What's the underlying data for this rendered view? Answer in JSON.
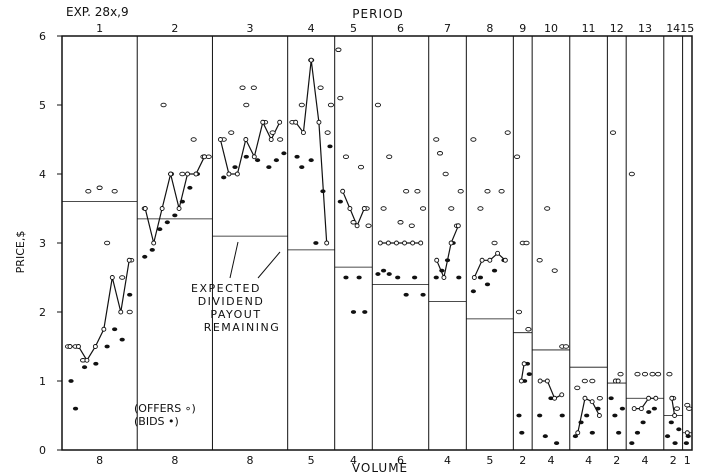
{
  "chart_data": {
    "type": "scatter",
    "experiment_label": "EXP. 28x,9",
    "title": "PERIOD",
    "xlabel": "VOLUME",
    "ylabel": "PRICE,$",
    "ylim": [
      0,
      6
    ],
    "yticks": [
      "0",
      "1",
      "2",
      "3",
      "4",
      "5",
      "6"
    ],
    "periods": [
      "1",
      "2",
      "3",
      "4",
      "5",
      "6",
      "7",
      "8",
      "9",
      "10",
      "11",
      "12",
      "13",
      "14",
      "15"
    ],
    "volumes": [
      "8",
      "8",
      "8",
      "5",
      "4",
      "6",
      "4",
      "5",
      "2",
      "4",
      "4",
      "2",
      "4",
      "2",
      "1"
    ],
    "period_weights": [
      8,
      8,
      8,
      5,
      4,
      6,
      4,
      5,
      2,
      4,
      4,
      2,
      4,
      2,
      1
    ],
    "dividend_payout_remaining": [
      3.6,
      3.35,
      3.1,
      2.9,
      2.65,
      2.4,
      2.15,
      1.9,
      1.7,
      1.45,
      1.2,
      0.97,
      0.75,
      0.5,
      0.25
    ],
    "annotation": [
      "EXPECTED",
      "DIVIDEND",
      "PAYOUT",
      "REMAINING"
    ],
    "legend": [
      "(OFFERS ∘)",
      "(BIDS •)"
    ],
    "transactions": [
      [
        1.5,
        1.5,
        1.3,
        1.5,
        1.75,
        2.5,
        2.0,
        2.75
      ],
      [
        3.5,
        3.0,
        3.5,
        4.0,
        3.5,
        4.0,
        4.0,
        4.25
      ],
      [
        4.5,
        4.0,
        4.0,
        4.5,
        4.25,
        4.75,
        4.5,
        4.75
      ],
      [
        4.75,
        4.6,
        5.65,
        4.75,
        3.0
      ],
      [
        3.75,
        3.5,
        3.25,
        3.5
      ],
      [
        3.0,
        3.0,
        3.0,
        3.0,
        3.0,
        3.0
      ],
      [
        2.75,
        2.5,
        3.0,
        3.25
      ],
      [
        2.5,
        2.75,
        2.75,
        2.85,
        2.75
      ],
      [
        1.0,
        1.25
      ],
      [
        1.0,
        1.0,
        0.75,
        0.8
      ],
      [
        0.25,
        0.75,
        0.7,
        0.5
      ],
      [
        1.0,
        1.0
      ],
      [
        0.6,
        0.6,
        0.75,
        0.75
      ],
      [
        0.75,
        0.5
      ],
      [
        0.25
      ]
    ],
    "offers": [
      [
        [
          0.08,
          1.5
        ],
        [
          0.18,
          1.5
        ],
        [
          0.28,
          1.3
        ],
        [
          0.35,
          3.75
        ],
        [
          0.5,
          3.8
        ],
        [
          0.6,
          3.0
        ],
        [
          0.7,
          3.75
        ],
        [
          0.8,
          2.5
        ],
        [
          0.9,
          2.0
        ],
        [
          0.92,
          2.75
        ]
      ],
      [
        [
          0.1,
          3.5
        ],
        [
          0.35,
          5.0
        ],
        [
          0.45,
          4.0
        ],
        [
          0.6,
          4.0
        ],
        [
          0.75,
          4.5
        ],
        [
          0.88,
          4.25
        ],
        [
          0.95,
          4.25
        ]
      ],
      [
        [
          0.15,
          4.5
        ],
        [
          0.25,
          4.6
        ],
        [
          0.4,
          5.25
        ],
        [
          0.45,
          5.0
        ],
        [
          0.55,
          5.25
        ],
        [
          0.7,
          4.75
        ],
        [
          0.8,
          4.6
        ],
        [
          0.9,
          4.5
        ]
      ],
      [
        [
          0.1,
          4.75
        ],
        [
          0.3,
          5.0
        ],
        [
          0.5,
          5.65
        ],
        [
          0.7,
          5.25
        ],
        [
          0.85,
          4.6
        ],
        [
          0.92,
          5.0
        ]
      ],
      [
        [
          0.1,
          5.8
        ],
        [
          0.15,
          5.1
        ],
        [
          0.3,
          4.25
        ],
        [
          0.5,
          3.3
        ],
        [
          0.7,
          4.1
        ],
        [
          0.85,
          3.5
        ],
        [
          0.9,
          3.25
        ]
      ],
      [
        [
          0.1,
          5.0
        ],
        [
          0.2,
          3.5
        ],
        [
          0.3,
          4.25
        ],
        [
          0.5,
          3.3
        ],
        [
          0.6,
          3.75
        ],
        [
          0.7,
          3.25
        ],
        [
          0.8,
          3.75
        ],
        [
          0.9,
          3.5
        ]
      ],
      [
        [
          0.2,
          4.5
        ],
        [
          0.3,
          4.3
        ],
        [
          0.45,
          4.0
        ],
        [
          0.6,
          3.5
        ],
        [
          0.75,
          3.25
        ],
        [
          0.85,
          3.75
        ]
      ],
      [
        [
          0.15,
          4.5
        ],
        [
          0.3,
          3.5
        ],
        [
          0.45,
          3.75
        ],
        [
          0.6,
          3.0
        ],
        [
          0.75,
          3.75
        ],
        [
          0.88,
          4.6
        ]
      ],
      [
        [
          0.2,
          4.25
        ],
        [
          0.3,
          2.0
        ],
        [
          0.5,
          3.0
        ],
        [
          0.7,
          3.0
        ],
        [
          0.8,
          1.75
        ]
      ],
      [
        [
          0.2,
          2.75
        ],
        [
          0.4,
          3.5
        ],
        [
          0.6,
          2.6
        ],
        [
          0.8,
          1.5
        ],
        [
          0.9,
          1.5
        ]
      ],
      [
        [
          0.2,
          0.9
        ],
        [
          0.4,
          1.0
        ],
        [
          0.6,
          1.0
        ],
        [
          0.8,
          0.75
        ]
      ],
      [
        [
          0.3,
          4.6
        ],
        [
          0.5,
          1.0
        ],
        [
          0.7,
          1.1
        ]
      ],
      [
        [
          0.15,
          4.0
        ],
        [
          0.3,
          1.1
        ],
        [
          0.5,
          1.1
        ],
        [
          0.7,
          1.1
        ],
        [
          0.85,
          1.1
        ]
      ],
      [
        [
          0.3,
          1.1
        ],
        [
          0.5,
          0.75
        ],
        [
          0.7,
          0.6
        ]
      ],
      [
        [
          0.5,
          0.65
        ],
        [
          0.7,
          0.6
        ]
      ]
    ],
    "bids": [
      [
        [
          0.12,
          1.0
        ],
        [
          0.18,
          0.6
        ],
        [
          0.3,
          1.2
        ],
        [
          0.45,
          1.25
        ],
        [
          0.6,
          1.5
        ],
        [
          0.7,
          1.75
        ],
        [
          0.8,
          1.6
        ],
        [
          0.9,
          2.25
        ]
      ],
      [
        [
          0.1,
          2.8
        ],
        [
          0.2,
          2.9
        ],
        [
          0.3,
          3.2
        ],
        [
          0.4,
          3.3
        ],
        [
          0.5,
          3.4
        ],
        [
          0.6,
          3.6
        ],
        [
          0.7,
          3.8
        ],
        [
          0.8,
          4.0
        ]
      ],
      [
        [
          0.15,
          3.95
        ],
        [
          0.3,
          4.1
        ],
        [
          0.45,
          4.25
        ],
        [
          0.6,
          4.2
        ],
        [
          0.75,
          4.1
        ],
        [
          0.85,
          4.2
        ],
        [
          0.95,
          4.3
        ]
      ],
      [
        [
          0.2,
          4.25
        ],
        [
          0.3,
          4.1
        ],
        [
          0.5,
          4.2
        ],
        [
          0.6,
          3.0
        ],
        [
          0.75,
          3.75
        ],
        [
          0.9,
          4.4
        ]
      ],
      [
        [
          0.15,
          3.6
        ],
        [
          0.3,
          2.5
        ],
        [
          0.5,
          2.0
        ],
        [
          0.65,
          2.5
        ],
        [
          0.8,
          2.0
        ]
      ],
      [
        [
          0.1,
          2.55
        ],
        [
          0.2,
          2.6
        ],
        [
          0.3,
          2.55
        ],
        [
          0.45,
          2.5
        ],
        [
          0.6,
          2.25
        ],
        [
          0.75,
          2.5
        ],
        [
          0.9,
          2.25
        ]
      ],
      [
        [
          0.2,
          2.5
        ],
        [
          0.35,
          2.6
        ],
        [
          0.5,
          2.75
        ],
        [
          0.65,
          3.0
        ],
        [
          0.8,
          2.5
        ]
      ],
      [
        [
          0.15,
          2.3
        ],
        [
          0.3,
          2.5
        ],
        [
          0.45,
          2.4
        ],
        [
          0.6,
          2.6
        ],
        [
          0.8,
          2.75
        ]
      ],
      [
        [
          0.3,
          0.5
        ],
        [
          0.45,
          0.25
        ],
        [
          0.6,
          1.0
        ],
        [
          0.75,
          1.25
        ],
        [
          0.85,
          1.1
        ]
      ],
      [
        [
          0.2,
          0.5
        ],
        [
          0.35,
          0.2
        ],
        [
          0.5,
          0.75
        ],
        [
          0.65,
          0.1
        ],
        [
          0.8,
          0.5
        ]
      ],
      [
        [
          0.15,
          0.2
        ],
        [
          0.3,
          0.4
        ],
        [
          0.45,
          0.5
        ],
        [
          0.6,
          0.25
        ],
        [
          0.75,
          0.6
        ]
      ],
      [
        [
          0.2,
          0.75
        ],
        [
          0.4,
          0.5
        ],
        [
          0.6,
          0.25
        ],
        [
          0.8,
          0.6
        ]
      ],
      [
        [
          0.15,
          0.1
        ],
        [
          0.3,
          0.25
        ],
        [
          0.45,
          0.4
        ],
        [
          0.6,
          0.55
        ],
        [
          0.75,
          0.6
        ]
      ],
      [
        [
          0.2,
          0.2
        ],
        [
          0.4,
          0.4
        ],
        [
          0.6,
          0.1
        ],
        [
          0.8,
          0.3
        ]
      ],
      [
        [
          0.4,
          0.1
        ],
        [
          0.6,
          0.2
        ]
      ]
    ],
    "grid": false
  }
}
